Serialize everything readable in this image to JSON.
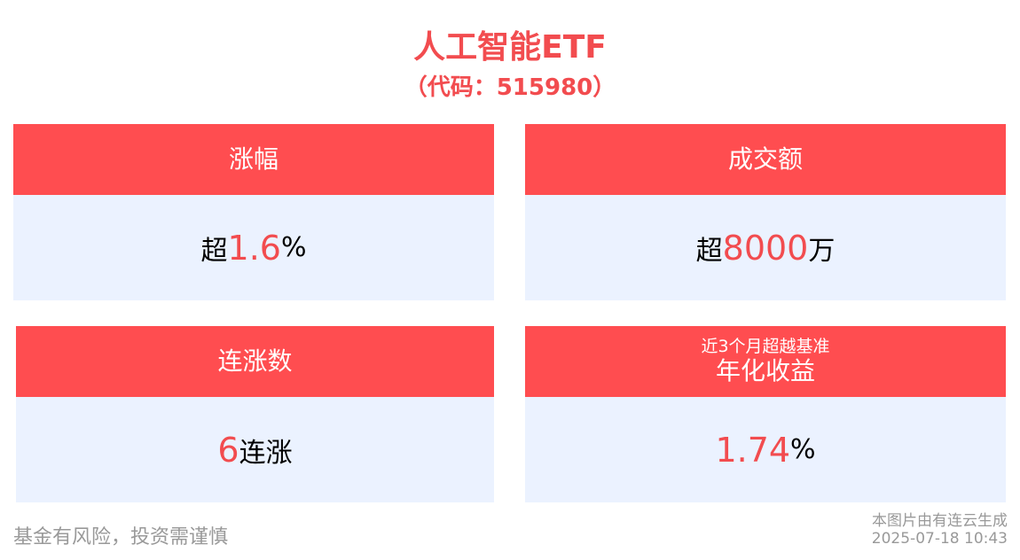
{
  "header": {
    "title": "人工智能ETF",
    "code": "（代码：515980）"
  },
  "cards": [
    {
      "label": "涨幅",
      "prefix": "超",
      "value": "1.6",
      "suffix": "%"
    },
    {
      "label": "成交额",
      "prefix": "超",
      "value": "8000",
      "suffix": "万"
    },
    {
      "label": "连涨数",
      "prefix": "",
      "value": "6",
      "suffix": "连涨"
    },
    {
      "sublabel": "近3个月超越基准",
      "label": "年化收益",
      "prefix": "",
      "value": "1.74",
      "suffix": "%"
    }
  ],
  "footer": {
    "disclaimer": "基金有风险，投资需谨慎",
    "source": "本图片由有连云生成",
    "timestamp": "2025-07-18 10:43"
  },
  "colors": {
    "accent": "#FF4D50",
    "card_bg": "#EBF2FF",
    "value": "#F24C4F"
  }
}
